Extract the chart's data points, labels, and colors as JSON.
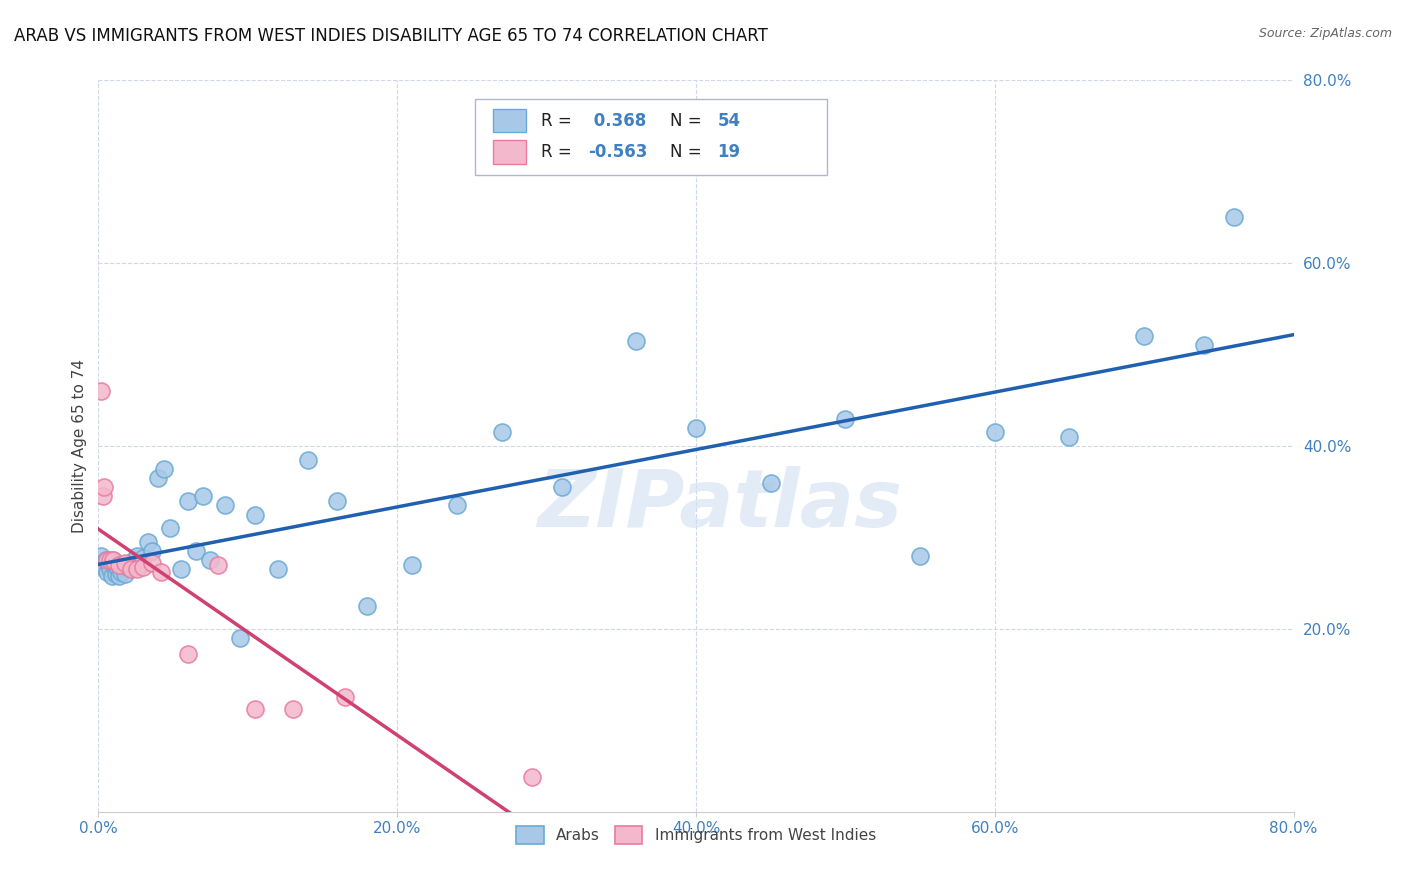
{
  "title": "ARAB VS IMMIGRANTS FROM WEST INDIES DISABILITY AGE 65 TO 74 CORRELATION CHART",
  "source": "Source: ZipAtlas.com",
  "ylabel": "Disability Age 65 to 74",
  "xlim": [
    0.0,
    0.8
  ],
  "ylim": [
    0.0,
    0.8
  ],
  "xtick_labels": [
    "0.0%",
    "20.0%",
    "40.0%",
    "60.0%",
    "80.0%"
  ],
  "xtick_vals": [
    0.0,
    0.2,
    0.4,
    0.6,
    0.8
  ],
  "ytick_labels": [
    "20.0%",
    "40.0%",
    "60.0%",
    "80.0%"
  ],
  "ytick_vals": [
    0.2,
    0.4,
    0.6,
    0.8
  ],
  "arab_R": 0.368,
  "arab_N": 54,
  "wi_R": -0.563,
  "wi_N": 19,
  "arab_color": "#a8c8e8",
  "arab_color_dark": "#6aaad4",
  "wi_color": "#f4b8cc",
  "wi_color_dark": "#e87ca0",
  "line_arab_color": "#2060b0",
  "line_wi_color": "#d04070",
  "tick_color": "#4080c0",
  "background_color": "#ffffff",
  "grid_color": "#d0d8e8",
  "arab_x": [
    0.002,
    0.003,
    0.004,
    0.005,
    0.006,
    0.007,
    0.008,
    0.009,
    0.01,
    0.011,
    0.012,
    0.013,
    0.014,
    0.015,
    0.016,
    0.017,
    0.018,
    0.02,
    0.022,
    0.024,
    0.026,
    0.028,
    0.03,
    0.033,
    0.036,
    0.04,
    0.044,
    0.048,
    0.055,
    0.06,
    0.065,
    0.07,
    0.075,
    0.085,
    0.095,
    0.105,
    0.12,
    0.14,
    0.16,
    0.18,
    0.21,
    0.24,
    0.27,
    0.31,
    0.36,
    0.4,
    0.45,
    0.5,
    0.55,
    0.6,
    0.65,
    0.7,
    0.74,
    0.76
  ],
  "arab_y": [
    0.28,
    0.272,
    0.268,
    0.275,
    0.262,
    0.27,
    0.265,
    0.258,
    0.275,
    0.268,
    0.26,
    0.265,
    0.258,
    0.262,
    0.268,
    0.27,
    0.26,
    0.268,
    0.272,
    0.275,
    0.28,
    0.27,
    0.278,
    0.295,
    0.285,
    0.365,
    0.375,
    0.31,
    0.265,
    0.34,
    0.285,
    0.345,
    0.275,
    0.335,
    0.19,
    0.325,
    0.265,
    0.385,
    0.34,
    0.225,
    0.27,
    0.335,
    0.415,
    0.355,
    0.515,
    0.42,
    0.36,
    0.43,
    0.28,
    0.415,
    0.41,
    0.52,
    0.51,
    0.65
  ],
  "wi_x": [
    0.002,
    0.003,
    0.004,
    0.006,
    0.008,
    0.01,
    0.014,
    0.018,
    0.022,
    0.026,
    0.03,
    0.036,
    0.042,
    0.06,
    0.08,
    0.105,
    0.13,
    0.165,
    0.29
  ],
  "wi_y": [
    0.46,
    0.345,
    0.355,
    0.275,
    0.275,
    0.275,
    0.27,
    0.272,
    0.265,
    0.265,
    0.268,
    0.272,
    0.262,
    0.172,
    0.27,
    0.112,
    0.112,
    0.125,
    0.038
  ],
  "watermark": "ZIPatlas",
  "title_fontsize": 12,
  "axis_label_fontsize": 11,
  "tick_fontsize": 11
}
